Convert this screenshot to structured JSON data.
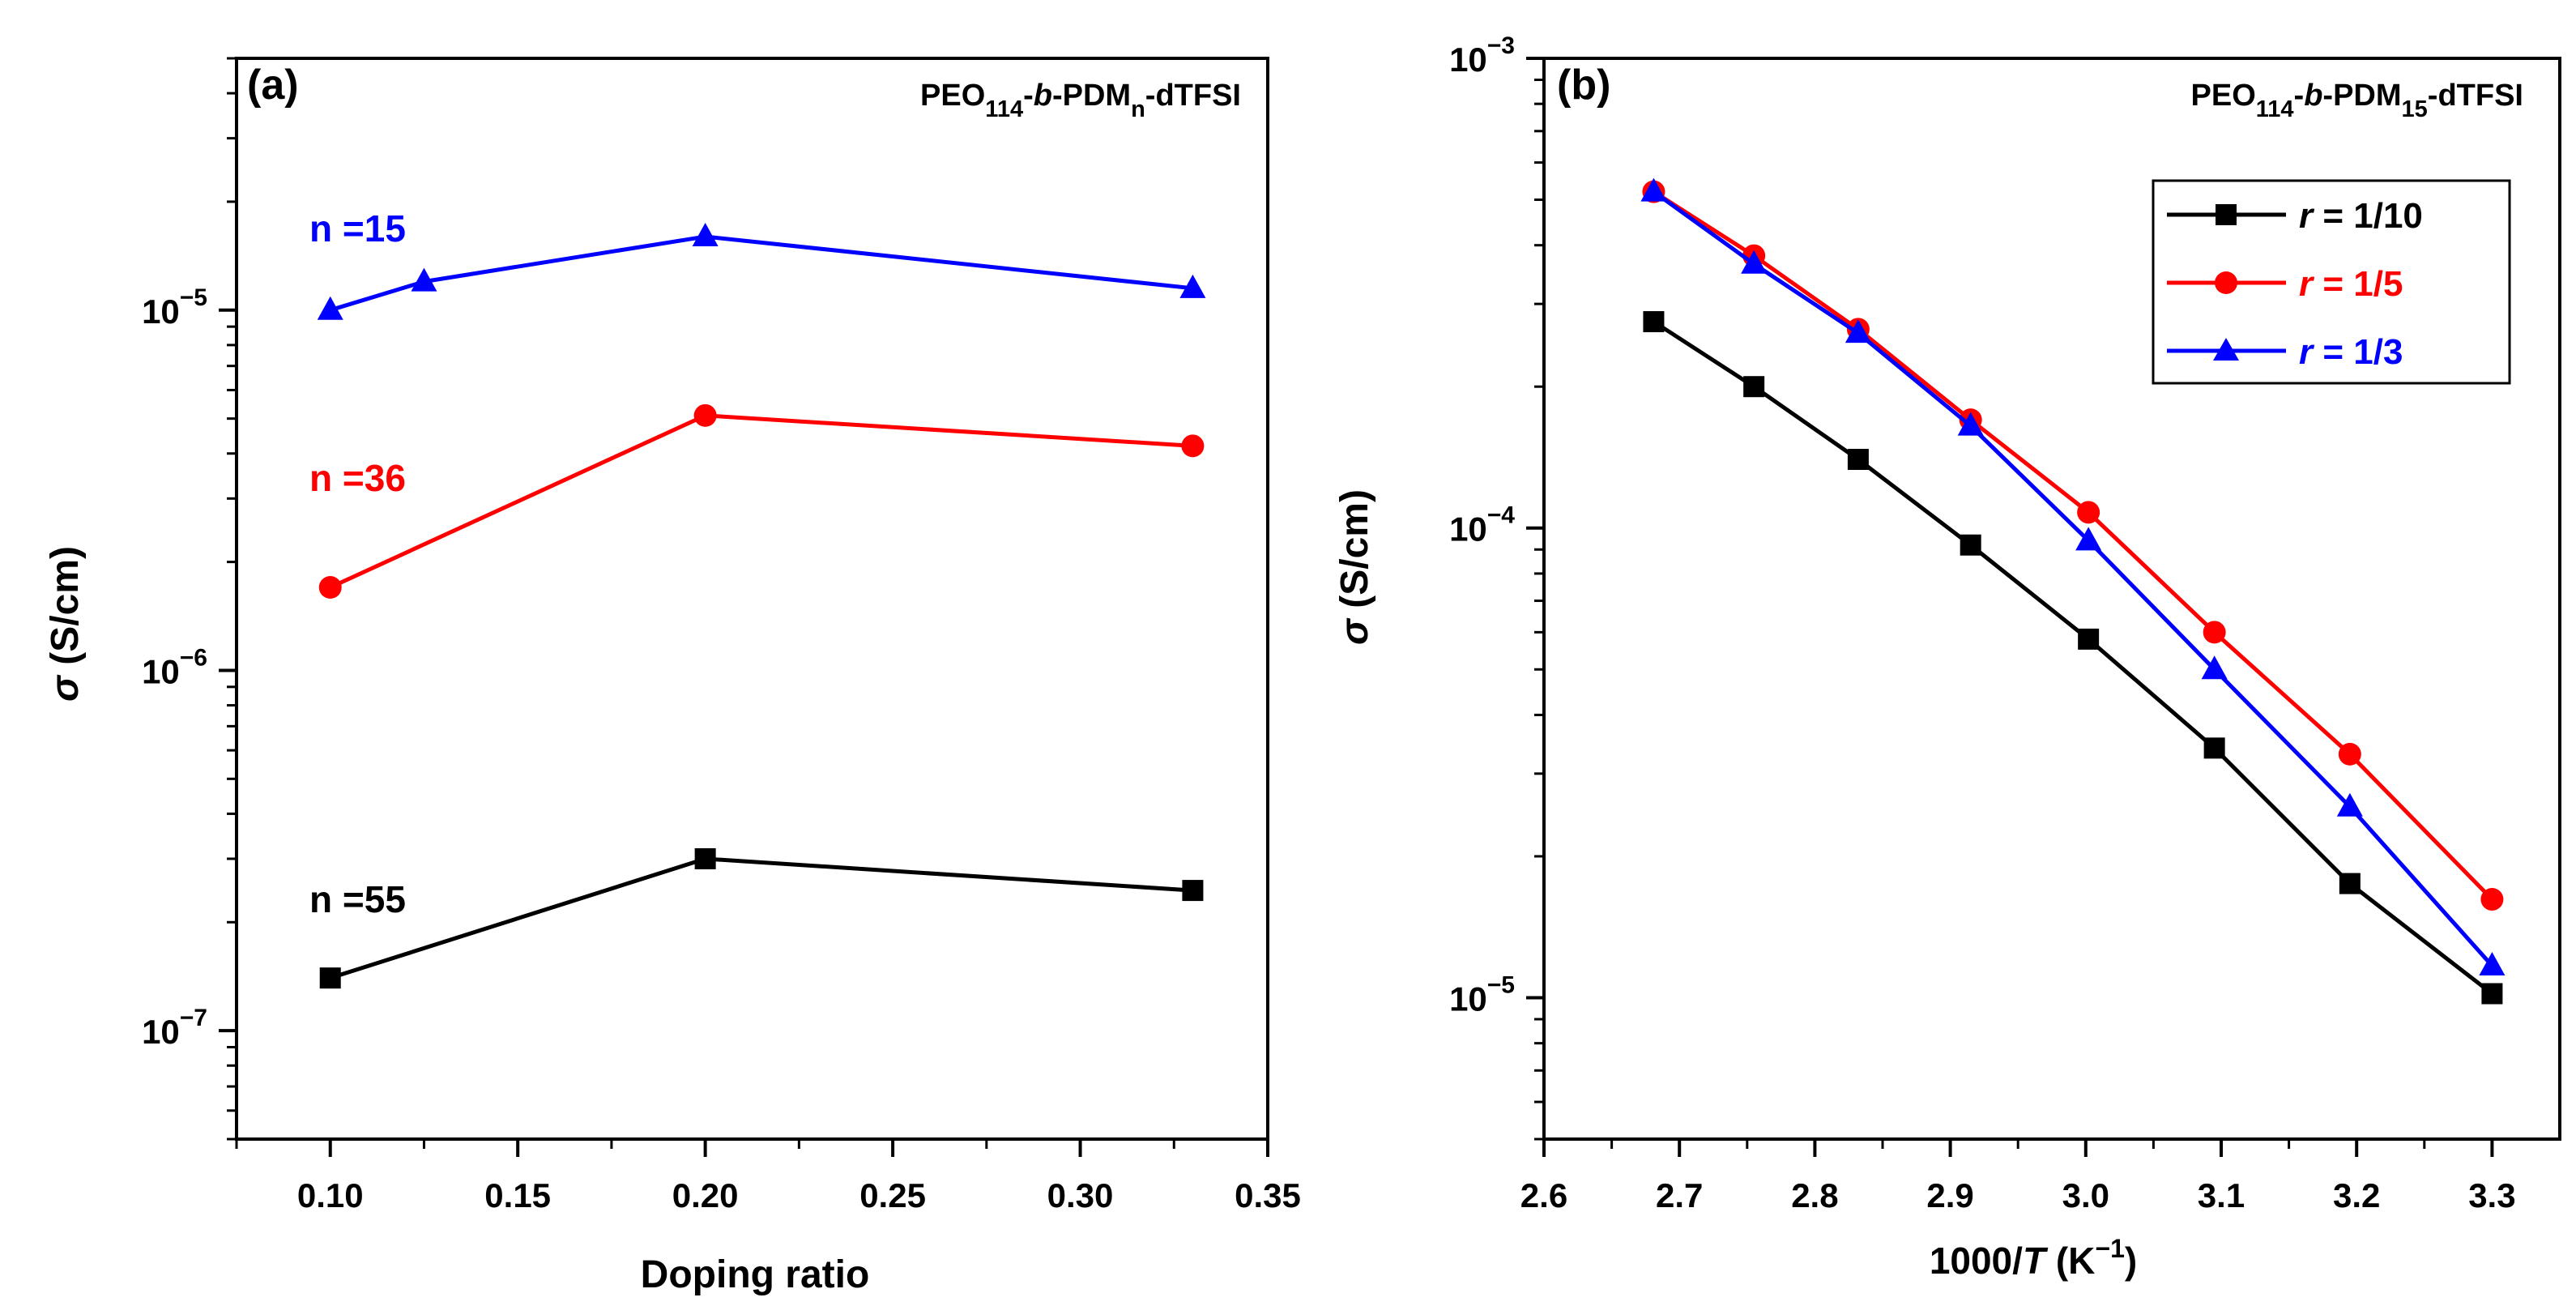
{
  "chart_data": [
    {
      "panel_label": "(a)",
      "type": "line",
      "title_parts": {
        "pre": "PEO",
        "sub1": "114",
        "dash1": "-",
        "ital": "b",
        "mid": "-PDM",
        "sub2": "n",
        "post": "-dTFSI"
      },
      "xlabel": "Doping ratio",
      "ylabel": {
        "sym": "σ",
        "rest": " (S/cm)"
      },
      "xlim": [
        0.075,
        0.35
      ],
      "ylim": [
        5e-08,
        5e-05
      ],
      "yscale": "log",
      "xticks": [
        0.1,
        0.15,
        0.2,
        0.25,
        0.3,
        0.35
      ],
      "xtick_labels": [
        "0.10",
        "0.15",
        "0.20",
        "0.25",
        "0.30",
        "0.35"
      ],
      "yticks": [
        {
          "value": 1e-07,
          "base": "10",
          "exp": "−7"
        },
        {
          "value": 1e-06,
          "base": "10",
          "exp": "−6"
        },
        {
          "value": 1e-05,
          "base": "10",
          "exp": "−5"
        }
      ],
      "series": [
        {
          "label": "n =15",
          "color": "#0000ff",
          "marker": "triangle",
          "x": [
            0.1,
            0.125,
            0.2,
            0.33
          ],
          "y": [
            1e-05,
            1.2e-05,
            1.6e-05,
            1.15e-05
          ]
        },
        {
          "label": "n =36",
          "color": "#ff0000",
          "marker": "circle",
          "x": [
            0.1,
            0.2,
            0.33
          ],
          "y": [
            1.7e-06,
            5.1e-06,
            4.2e-06
          ]
        },
        {
          "label": "n =55",
          "color": "#000000",
          "marker": "square",
          "x": [
            0.1,
            0.2,
            0.33
          ],
          "y": [
            1.4e-07,
            3e-07,
            2.45e-07
          ]
        }
      ]
    },
    {
      "panel_label": "(b)",
      "type": "line",
      "title_parts": {
        "pre": "PEO",
        "sub1": "114",
        "dash1": "-",
        "ital": "b",
        "mid": "-PDM",
        "sub2": "15",
        "post": "-dTFSI"
      },
      "xlabel": {
        "pre": "1000/",
        "ital": "T",
        "mid": " (K",
        "sup": "−1",
        "post": ")"
      },
      "ylabel": {
        "sym": "σ",
        "rest": " (S/cm)"
      },
      "xlim": [
        2.6,
        3.35
      ],
      "ylim": [
        5e-06,
        0.001
      ],
      "yscale": "log",
      "xticks": [
        2.6,
        2.7,
        2.8,
        2.9,
        3.0,
        3.1,
        3.2,
        3.3
      ],
      "xtick_labels": [
        "2.6",
        "2.7",
        "2.8",
        "2.9",
        "3.0",
        "3.1",
        "3.2",
        "3.3"
      ],
      "yticks": [
        {
          "value": 1e-05,
          "base": "10",
          "exp": "−5"
        },
        {
          "value": 0.0001,
          "base": "10",
          "exp": "−4"
        },
        {
          "value": 0.001,
          "base": "10",
          "exp": "−3"
        }
      ],
      "legend_position": "top-right",
      "series": [
        {
          "name": "r = 1/10",
          "name_ital": "r",
          "name_rest": " = 1/10",
          "color": "#000000",
          "marker": "square",
          "x": [
            2.681,
            2.755,
            2.832,
            2.915,
            3.002,
            3.095,
            3.195,
            3.3
          ],
          "y": [
            0.000275,
            0.0002,
            0.00014,
            9.2e-05,
            5.8e-05,
            3.4e-05,
            1.75e-05,
            1.02e-05
          ]
        },
        {
          "name": "r = 1/5",
          "name_ital": "r",
          "name_rest": " = 1/5",
          "color": "#ff0000",
          "marker": "circle",
          "x": [
            2.681,
            2.755,
            2.832,
            2.915,
            3.002,
            3.095,
            3.195,
            3.3
          ],
          "y": [
            0.00052,
            0.00038,
            0.000265,
            0.00017,
            0.000108,
            6e-05,
            3.3e-05,
            1.62e-05
          ]
        },
        {
          "name": "r = 1/3",
          "name_ital": "r",
          "name_rest": " = 1/3",
          "color": "#0000ff",
          "marker": "triangle",
          "x": [
            2.681,
            2.755,
            2.832,
            2.915,
            3.002,
            3.095,
            3.195,
            3.3
          ],
          "y": [
            0.00052,
            0.000365,
            0.00026,
            0.000165,
            9.4e-05,
            5e-05,
            2.55e-05,
            1.17e-05
          ]
        }
      ]
    }
  ]
}
